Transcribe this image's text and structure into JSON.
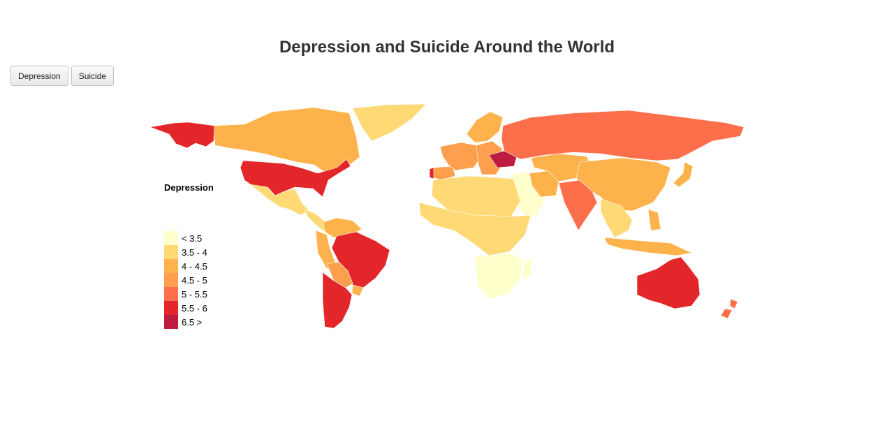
{
  "title": "Depression and Suicide Around the World",
  "buttons": {
    "depression": "Depression",
    "suicide": "Suicide"
  },
  "legend": {
    "title": "Depression",
    "items": [
      {
        "label": "< 3.5",
        "color": "#ffffcc"
      },
      {
        "label": "3.5 - 4",
        "color": "#fed976"
      },
      {
        "label": "4 - 4.5",
        "color": "#feb24c"
      },
      {
        "label": "4.5 - 5",
        "color": "#fd9f4c"
      },
      {
        "label": "5 - 5.5",
        "color": "#fc6f4a"
      },
      {
        "label": "5.5 - 6",
        "color": "#e3262a"
      },
      {
        "label": "6.5 >",
        "color": "#bd1e3f"
      }
    ]
  },
  "map": {
    "metric": "Depression",
    "regions": [
      {
        "name": "Canada",
        "class": 2
      },
      {
        "name": "Greenland",
        "class": 1
      },
      {
        "name": "Alaska",
        "class": 5
      },
      {
        "name": "United States",
        "class": 5
      },
      {
        "name": "Mexico",
        "class": 1
      },
      {
        "name": "Central America",
        "class": 1
      },
      {
        "name": "Colombia / Venezuela",
        "class": 2
      },
      {
        "name": "Peru / Ecuador",
        "class": 2
      },
      {
        "name": "Brazil",
        "class": 5
      },
      {
        "name": "Bolivia / Paraguay",
        "class": 3
      },
      {
        "name": "Argentina / Chile",
        "class": 2
      },
      {
        "name": "Uruguay",
        "class": 5
      },
      {
        "name": "Iberia",
        "class": 3
      },
      {
        "name": "Portugal",
        "class": 5
      },
      {
        "name": "Western Europe",
        "class": 3
      },
      {
        "name": "Scandinavia",
        "class": 2
      },
      {
        "name": "Eastern Europe",
        "class": 3
      },
      {
        "name": "Ukraine",
        "class": 6
      },
      {
        "name": "Russia",
        "class": 4
      },
      {
        "name": "North Africa",
        "class": 2
      },
      {
        "name": "West / Central Africa",
        "class": 0
      },
      {
        "name": "Southern Africa",
        "class": 2
      },
      {
        "name": "Madagascar",
        "class": 2
      },
      {
        "name": "Middle East",
        "class": 2
      },
      {
        "name": "Iran",
        "class": 4
      },
      {
        "name": "Central Asia",
        "class": 1
      },
      {
        "name": "India",
        "class": 2
      },
      {
        "name": "China",
        "class": 1
      },
      {
        "name": "Japan",
        "class": 1
      },
      {
        "name": "Southeast Asia",
        "class": 0
      },
      {
        "name": "Indonesia / Philippines",
        "class": 0
      },
      {
        "name": "Australia",
        "class": 5
      },
      {
        "name": "New Zealand",
        "class": 4
      }
    ]
  }
}
